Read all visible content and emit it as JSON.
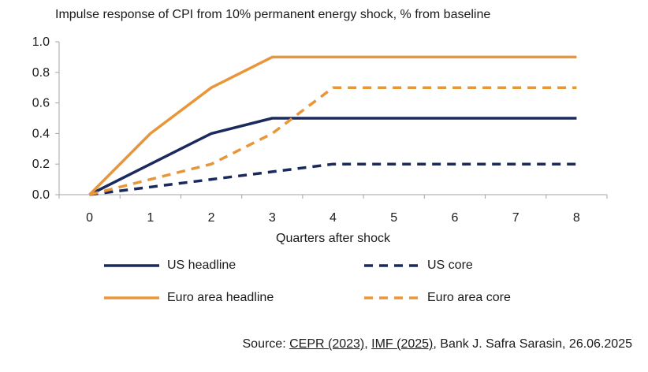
{
  "chart_data": {
    "type": "line",
    "title": "Impulse response of CPI from 10% permanent energy shock, % from baseline",
    "xlabel": "Quarters after shock",
    "ylabel": "",
    "x": [
      0,
      1,
      2,
      3,
      4,
      5,
      6,
      7,
      8
    ],
    "ylim": [
      0,
      1.0
    ],
    "yticks": [
      "0.0",
      "0.2",
      "0.4",
      "0.6",
      "0.8",
      "1.0"
    ],
    "xticks": [
      "0",
      "1",
      "2",
      "3",
      "4",
      "5",
      "6",
      "7",
      "8"
    ],
    "grid": false,
    "legend_position": "bottom",
    "series": [
      {
        "name": "US headline",
        "values": [
          0,
          0.2,
          0.4,
          0.5,
          0.5,
          0.5,
          0.5,
          0.5,
          0.5
        ],
        "color": "#1b2a5e",
        "style": "solid"
      },
      {
        "name": "US core",
        "values": [
          0,
          0.05,
          0.1,
          0.15,
          0.2,
          0.2,
          0.2,
          0.2,
          0.2
        ],
        "color": "#1b2a5e",
        "style": "dashed"
      },
      {
        "name": "Euro area headline",
        "values": [
          0,
          0.4,
          0.7,
          0.9,
          0.9,
          0.9,
          0.9,
          0.9,
          0.9
        ],
        "color": "#e8963a",
        "style": "solid"
      },
      {
        "name": "Euro area core",
        "values": [
          0,
          0.1,
          0.2,
          0.4,
          0.7,
          0.7,
          0.7,
          0.7,
          0.7
        ],
        "color": "#e8963a",
        "style": "dashed"
      }
    ]
  },
  "source": {
    "prefix": "Source: ",
    "link1": "CEPR (2023)",
    "sep1": ", ",
    "link2": "IMF (2025)",
    "suffix": ", Bank J. Safra Sarasin, 26.06.2025"
  }
}
